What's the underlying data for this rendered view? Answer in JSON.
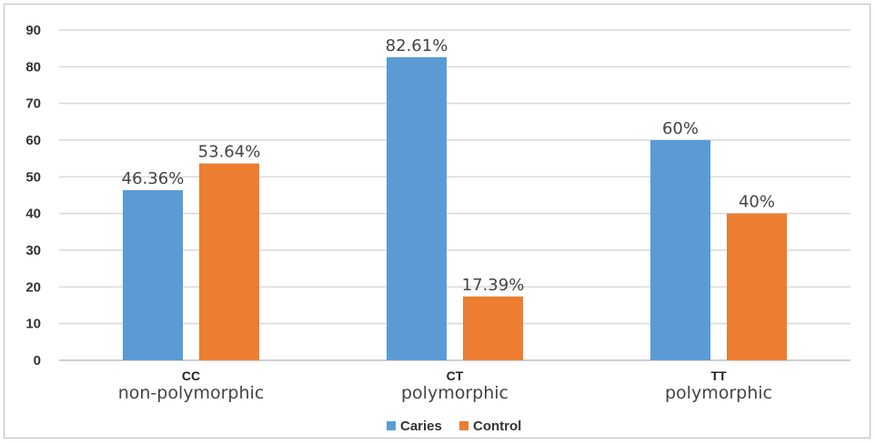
{
  "chart_data": {
    "type": "bar",
    "categories": [
      {
        "code": "CC",
        "desc": "non-polymorphic"
      },
      {
        "code": "CT",
        "desc": "polymorphic"
      },
      {
        "code": "TT",
        "desc": "polymorphic"
      }
    ],
    "series": [
      {
        "name": "Caries",
        "color": "#5b9bd5",
        "values": [
          46.36,
          82.61,
          60
        ],
        "labels": [
          "46.36%",
          "82.61%",
          "60%"
        ]
      },
      {
        "name": "Control",
        "color": "#ed7d31",
        "values": [
          53.64,
          17.39,
          40
        ],
        "labels": [
          "53.64%",
          "17.39%",
          "40%"
        ]
      }
    ],
    "yticks": [
      0,
      10,
      20,
      30,
      40,
      50,
      60,
      70,
      80,
      90
    ],
    "ylim": [
      0,
      90
    ],
    "grid": true,
    "legend_position": "bottom-center",
    "title": "",
    "xlabel": "",
    "ylabel": ""
  }
}
